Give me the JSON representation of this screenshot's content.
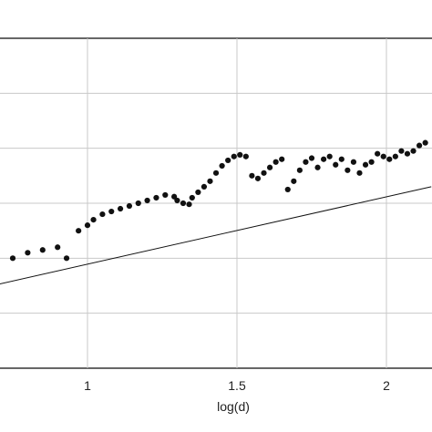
{
  "chart_data": {
    "type": "scatter",
    "xlabel": "log(d)",
    "ylabel": "",
    "title": "",
    "xlim": [
      0.68,
      2.15
    ],
    "ylim": [
      0,
      6
    ],
    "xticks": [
      1,
      1.5,
      2
    ],
    "xtick_labels": [
      "1",
      "1.5",
      "2"
    ],
    "yticks": [
      1,
      2,
      3,
      4,
      5
    ],
    "grid": true,
    "colors": {
      "points": "#111111",
      "line": "#111111",
      "grid": "#c8c8c8",
      "axes": "#000000"
    },
    "fit_line": {
      "x": [
        0.68,
        2.15
      ],
      "y": [
        1.5,
        3.3
      ]
    },
    "series": [
      {
        "values": [
          [
            0.75,
            2.0
          ],
          [
            0.8,
            2.1
          ],
          [
            0.85,
            2.15
          ],
          [
            0.9,
            2.2
          ],
          [
            0.93,
            2.0
          ],
          [
            0.97,
            2.5
          ],
          [
            1.0,
            2.6
          ],
          [
            1.02,
            2.7
          ],
          [
            1.05,
            2.8
          ],
          [
            1.08,
            2.85
          ],
          [
            1.11,
            2.9
          ],
          [
            1.14,
            2.95
          ],
          [
            1.17,
            3.0
          ],
          [
            1.2,
            3.05
          ],
          [
            1.23,
            3.1
          ],
          [
            1.26,
            3.15
          ],
          [
            1.29,
            3.12
          ],
          [
            1.3,
            3.05
          ],
          [
            1.32,
            3.0
          ],
          [
            1.34,
            2.98
          ],
          [
            1.35,
            3.1
          ],
          [
            1.37,
            3.2
          ],
          [
            1.39,
            3.3
          ],
          [
            1.41,
            3.4
          ],
          [
            1.43,
            3.55
          ],
          [
            1.45,
            3.68
          ],
          [
            1.47,
            3.78
          ],
          [
            1.49,
            3.85
          ],
          [
            1.51,
            3.88
          ],
          [
            1.53,
            3.85
          ],
          [
            1.55,
            3.5
          ],
          [
            1.57,
            3.45
          ],
          [
            1.59,
            3.55
          ],
          [
            1.61,
            3.65
          ],
          [
            1.63,
            3.75
          ],
          [
            1.65,
            3.8
          ],
          [
            1.67,
            3.25
          ],
          [
            1.69,
            3.4
          ],
          [
            1.71,
            3.6
          ],
          [
            1.73,
            3.75
          ],
          [
            1.75,
            3.82
          ],
          [
            1.77,
            3.65
          ],
          [
            1.79,
            3.8
          ],
          [
            1.81,
            3.85
          ],
          [
            1.83,
            3.7
          ],
          [
            1.85,
            3.8
          ],
          [
            1.87,
            3.6
          ],
          [
            1.89,
            3.75
          ],
          [
            1.91,
            3.55
          ],
          [
            1.93,
            3.7
          ],
          [
            1.95,
            3.75
          ],
          [
            1.97,
            3.9
          ],
          [
            1.99,
            3.85
          ],
          [
            2.01,
            3.8
          ],
          [
            2.03,
            3.85
          ],
          [
            2.05,
            3.95
          ],
          [
            2.07,
            3.9
          ],
          [
            2.09,
            3.95
          ],
          [
            2.11,
            4.05
          ],
          [
            2.13,
            4.1
          ]
        ]
      }
    ]
  }
}
